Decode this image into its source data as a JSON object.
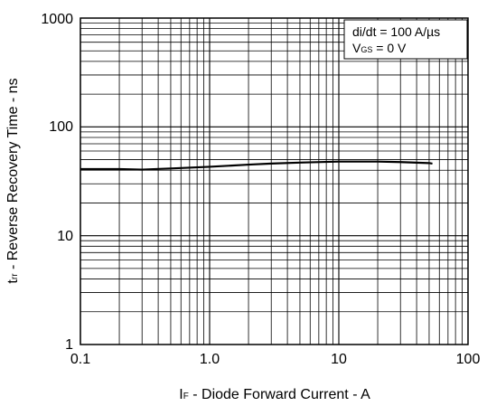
{
  "chart_data": {
    "type": "line",
    "x_scale": "log",
    "y_scale": "log",
    "xlim": [
      0.1,
      100
    ],
    "ylim": [
      1,
      1000
    ],
    "grid": true,
    "x_tick_labels": [
      "0.1",
      "1.0",
      "10",
      "100"
    ],
    "y_tick_labels": [
      "1",
      "10",
      "100",
      "1000"
    ],
    "xlabel": {
      "main": "I",
      "sub": "F",
      "rest": " - Diode Forward Current - A"
    },
    "ylabel": {
      "main": "t",
      "sub": "rr",
      "rest": " - Reverse Recovery Time - ns"
    },
    "legend": {
      "line1": "di/dt = 100 A/µs",
      "line2": {
        "main": "V",
        "sub": "GS",
        "rest": " = 0 V"
      }
    },
    "series": [
      {
        "x": [
          0.1,
          0.2,
          0.3,
          0.5,
          1.0,
          2.0,
          3.0,
          5.0,
          10,
          20,
          30,
          50,
          53
        ],
        "y": [
          41,
          41,
          40.5,
          41.5,
          43,
          45,
          46,
          47,
          48,
          48,
          47.5,
          46.5,
          46
        ]
      }
    ]
  }
}
